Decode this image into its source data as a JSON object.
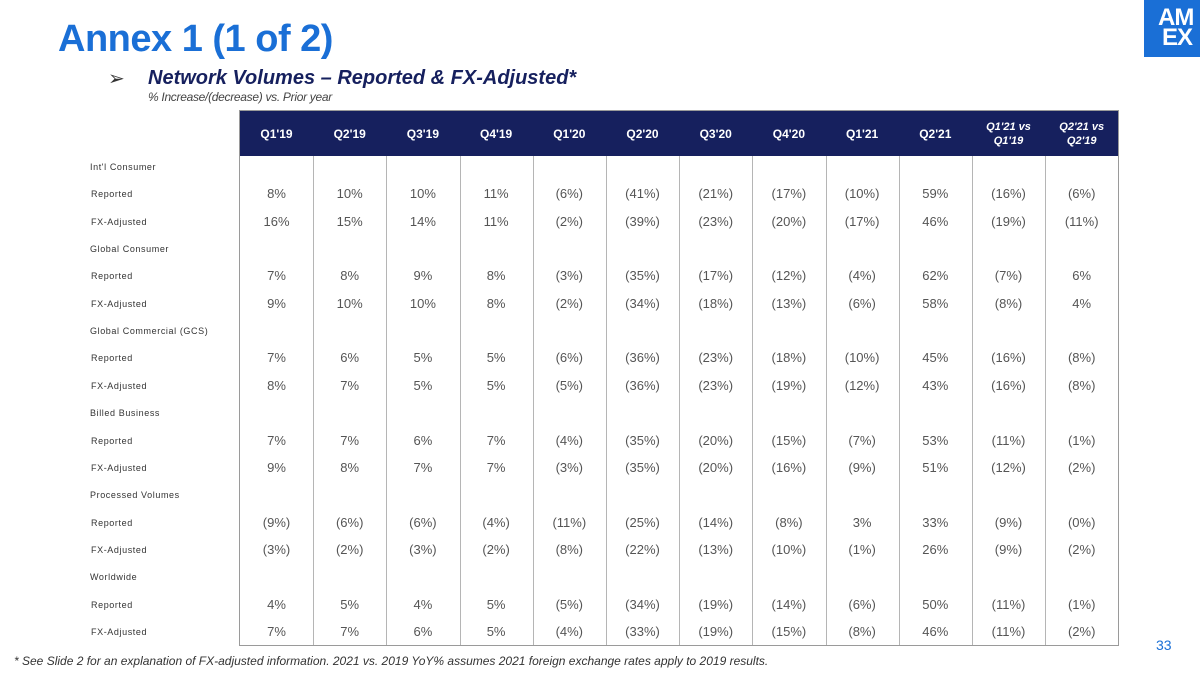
{
  "title": "Annex 1 (1 of 2)",
  "logo": {
    "line1": "AM",
    "line2": "EX"
  },
  "subtitle": "Network Volumes – Reported & FX-Adjusted*",
  "subnote": "% Increase/(decrease) vs. Prior year",
  "colors": {
    "accent": "#1a6fd6",
    "header_bg": "#16205e"
  },
  "icons": {
    "bullet": "circle-arrow-right-icon"
  },
  "columns": [
    "Q1'19",
    "Q2'19",
    "Q3'19",
    "Q4'19",
    "Q1'20",
    "Q2'20",
    "Q3'20",
    "Q4'20",
    "Q1'21",
    "Q2'21",
    "Q1'21 vs Q1'19",
    "Q2'21 vs Q2'19"
  ],
  "rows": [
    {
      "label": "Int'l Consumer",
      "type": "group",
      "values": []
    },
    {
      "label": "Reported",
      "type": "data",
      "values": [
        "8%",
        "10%",
        "10%",
        "11%",
        "(6%)",
        "(41%)",
        "(21%)",
        "(17%)",
        "(10%)",
        "59%",
        "(16%)",
        "(6%)"
      ]
    },
    {
      "label": "FX-Adjusted",
      "type": "data",
      "values": [
        "16%",
        "15%",
        "14%",
        "11%",
        "(2%)",
        "(39%)",
        "(23%)",
        "(20%)",
        "(17%)",
        "46%",
        "(19%)",
        "(11%)"
      ]
    },
    {
      "label": "Global Consumer",
      "type": "group",
      "values": []
    },
    {
      "label": "Reported",
      "type": "data",
      "values": [
        "7%",
        "8%",
        "9%",
        "8%",
        "(3%)",
        "(35%)",
        "(17%)",
        "(12%)",
        "(4%)",
        "62%",
        "(7%)",
        "6%"
      ]
    },
    {
      "label": "FX-Adjusted",
      "type": "data",
      "values": [
        "9%",
        "10%",
        "10%",
        "8%",
        "(2%)",
        "(34%)",
        "(18%)",
        "(13%)",
        "(6%)",
        "58%",
        "(8%)",
        "4%"
      ]
    },
    {
      "label": "Global Commercial (GCS)",
      "type": "group",
      "values": []
    },
    {
      "label": "Reported",
      "type": "data",
      "values": [
        "7%",
        "6%",
        "5%",
        "5%",
        "(6%)",
        "(36%)",
        "(23%)",
        "(18%)",
        "(10%)",
        "45%",
        "(16%)",
        "(8%)"
      ]
    },
    {
      "label": "FX-Adjusted",
      "type": "data",
      "values": [
        "8%",
        "7%",
        "5%",
        "5%",
        "(5%)",
        "(36%)",
        "(23%)",
        "(19%)",
        "(12%)",
        "43%",
        "(16%)",
        "(8%)"
      ]
    },
    {
      "label": "Billed Business",
      "type": "group",
      "values": []
    },
    {
      "label": "Reported",
      "type": "data",
      "values": [
        "7%",
        "7%",
        "6%",
        "7%",
        "(4%)",
        "(35%)",
        "(20%)",
        "(15%)",
        "(7%)",
        "53%",
        "(11%)",
        "(1%)"
      ]
    },
    {
      "label": "FX-Adjusted",
      "type": "data",
      "values": [
        "9%",
        "8%",
        "7%",
        "7%",
        "(3%)",
        "(35%)",
        "(20%)",
        "(16%)",
        "(9%)",
        "51%",
        "(12%)",
        "(2%)"
      ]
    },
    {
      "label": "Processed Volumes",
      "type": "group",
      "values": []
    },
    {
      "label": "Reported",
      "type": "data",
      "values": [
        "(9%)",
        "(6%)",
        "(6%)",
        "(4%)",
        "(11%)",
        "(25%)",
        "(14%)",
        "(8%)",
        "3%",
        "33%",
        "(9%)",
        "(0%)"
      ]
    },
    {
      "label": "FX-Adjusted",
      "type": "data",
      "values": [
        "(3%)",
        "(2%)",
        "(3%)",
        "(2%)",
        "(8%)",
        "(22%)",
        "(13%)",
        "(10%)",
        "(1%)",
        "26%",
        "(9%)",
        "(2%)"
      ]
    },
    {
      "label": "Worldwide",
      "type": "group",
      "values": []
    },
    {
      "label": "Reported",
      "type": "data",
      "values": [
        "4%",
        "5%",
        "4%",
        "5%",
        "(5%)",
        "(34%)",
        "(19%)",
        "(14%)",
        "(6%)",
        "50%",
        "(11%)",
        "(1%)"
      ]
    },
    {
      "label": "FX-Adjusted",
      "type": "data",
      "values": [
        "7%",
        "7%",
        "6%",
        "5%",
        "(4%)",
        "(33%)",
        "(19%)",
        "(15%)",
        "(8%)",
        "46%",
        "(11%)",
        "(2%)"
      ]
    }
  ],
  "footer": "* See Slide 2 for an explanation of FX-adjusted information.  2021 vs. 2019 YoY% assumes 2021 foreign exchange rates apply to 2019 results.",
  "page_number": "33"
}
